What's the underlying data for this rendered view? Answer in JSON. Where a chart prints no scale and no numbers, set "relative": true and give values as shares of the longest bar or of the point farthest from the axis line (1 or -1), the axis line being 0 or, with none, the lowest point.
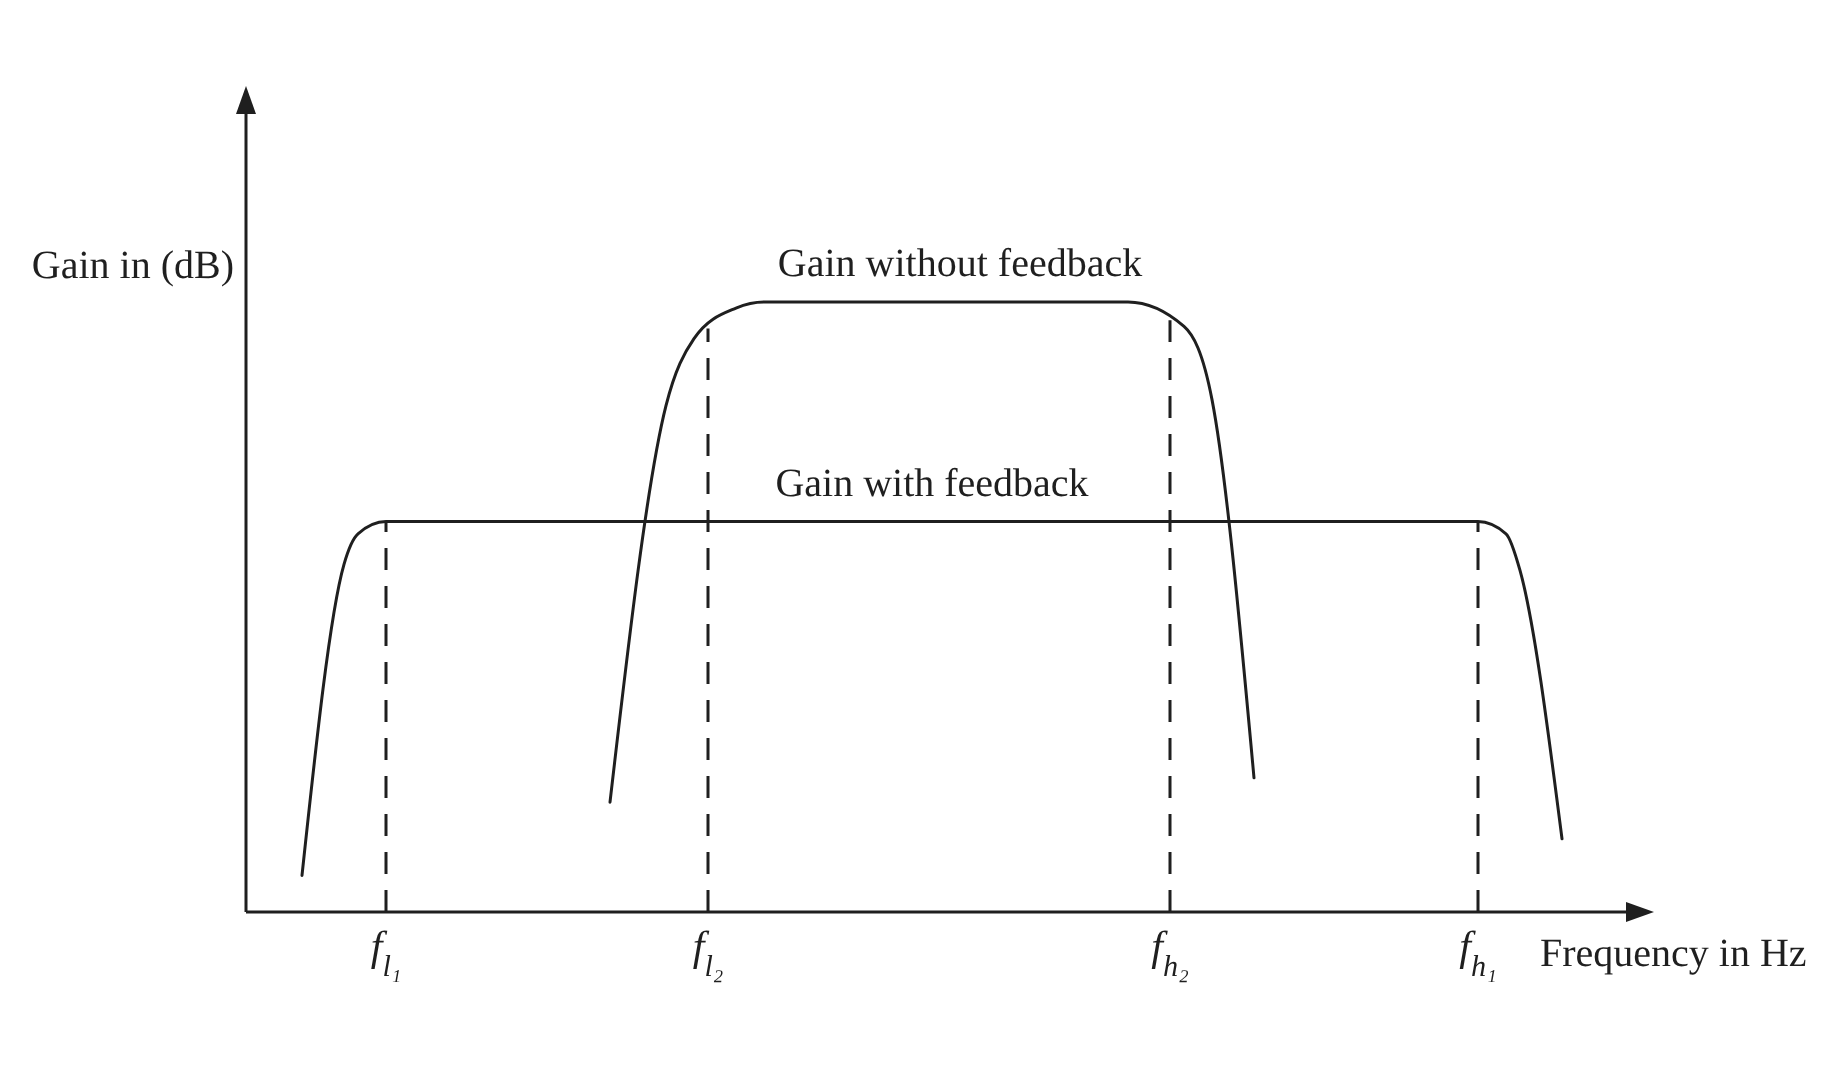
{
  "chart_data": {
    "type": "line",
    "relative": true,
    "xlabel": "Frequency in Hz",
    "ylabel": "Gain in (dB)",
    "categories": [
      null,
      null,
      null,
      null,
      null,
      null,
      null,
      null,
      null,
      null,
      "f$_{l₁}$",
      null,
      null,
      null,
      null,
      null,
      null,
      null,
      null,
      null,
      null,
      null,
      null,
      null,
      null,
      null,
      null,
      null,
      null,
      null,
      null,
      null,
      null,
      "f$_{l₂}$",
      null,
      null,
      null,
      null,
      null,
      null,
      null,
      null,
      null,
      null,
      null,
      null,
      null,
      null,
      null,
      null,
      null,
      null,
      null,
      null,
      null,
      null,
      null,
      null,
      null,
      null,
      null,
      null,
      null,
      null,
      null,
      null,
      "f$_{h₂}$",
      null,
      null,
      null,
      null,
      null,
      null,
      null,
      null,
      null,
      null,
      null,
      null,
      null,
      null,
      null,
      null,
      null,
      null,
      null,
      null,
      null,
      "f$_{h₁}$",
      null,
      null,
      null,
      null,
      null,
      null,
      null,
      null,
      null,
      null,
      null,
      null
    ],
    "series": [
      {
        "name": "Gain without feedback",
        "color": "#1f1f1f",
        "values": [
          null,
          null,
          null,
          null,
          null,
          null,
          null,
          null,
          null,
          null,
          null,
          null,
          null,
          null,
          null,
          null,
          null,
          null,
          null,
          null,
          null,
          null,
          null,
          null,
          null,
          null,
          0.18,
          null,
          null,
          null,
          0.83,
          null,
          0.94,
          null,
          null,
          0.99,
          null,
          1,
          null,
          null,
          null,
          null,
          null,
          null,
          null,
          null,
          null,
          null,
          null,
          null,
          null,
          null,
          null,
          null,
          null,
          null,
          null,
          null,
          null,
          null,
          null,
          null,
          null,
          1,
          null,
          null,
          null,
          0.96,
          null,
          0.84,
          null,
          null,
          0.22,
          null,
          null,
          null,
          null,
          null,
          null,
          null,
          null,
          null,
          null,
          null,
          null,
          null,
          null,
          null,
          null,
          null,
          null,
          null,
          null,
          null,
          null,
          null,
          null,
          null,
          null,
          null,
          null
        ]
      },
      {
        "name": "Gain with feedback",
        "color": "#1f1f1f",
        "values": [
          null,
          null,
          null,
          null,
          0.06,
          null,
          null,
          0.57,
          0.62,
          null,
          0.64,
          null,
          null,
          null,
          null,
          null,
          null,
          null,
          null,
          null,
          null,
          null,
          null,
          null,
          null,
          null,
          null,
          null,
          null,
          null,
          null,
          null,
          null,
          null,
          null,
          null,
          null,
          null,
          null,
          null,
          null,
          null,
          null,
          null,
          null,
          null,
          null,
          null,
          null,
          null,
          null,
          null,
          null,
          null,
          null,
          null,
          null,
          null,
          null,
          null,
          null,
          null,
          null,
          null,
          null,
          null,
          null,
          null,
          null,
          null,
          null,
          null,
          null,
          null,
          null,
          null,
          null,
          null,
          null,
          null,
          null,
          null,
          null,
          null,
          null,
          null,
          null,
          null,
          0.64,
          null,
          0.62,
          0.56,
          null,
          null,
          0.12,
          null,
          null,
          null,
          null,
          null,
          null
        ]
      }
    ],
    "ref_lines": [
      {
        "axis": "x",
        "value": "f$_{l₁}$",
        "line_style": "dashed",
        "color": "#1f1f1f"
      },
      {
        "axis": "x",
        "value": "f$_{l₂}$",
        "line_style": "dashed",
        "color": "#1f1f1f"
      },
      {
        "axis": "x",
        "value": "f$_{h₂}$",
        "line_style": "dashed",
        "color": "#1f1f1f"
      },
      {
        "axis": "x",
        "value": "f$_{h₁}$",
        "line_style": "dashed",
        "color": "#1f1f1f"
      }
    ]
  }
}
